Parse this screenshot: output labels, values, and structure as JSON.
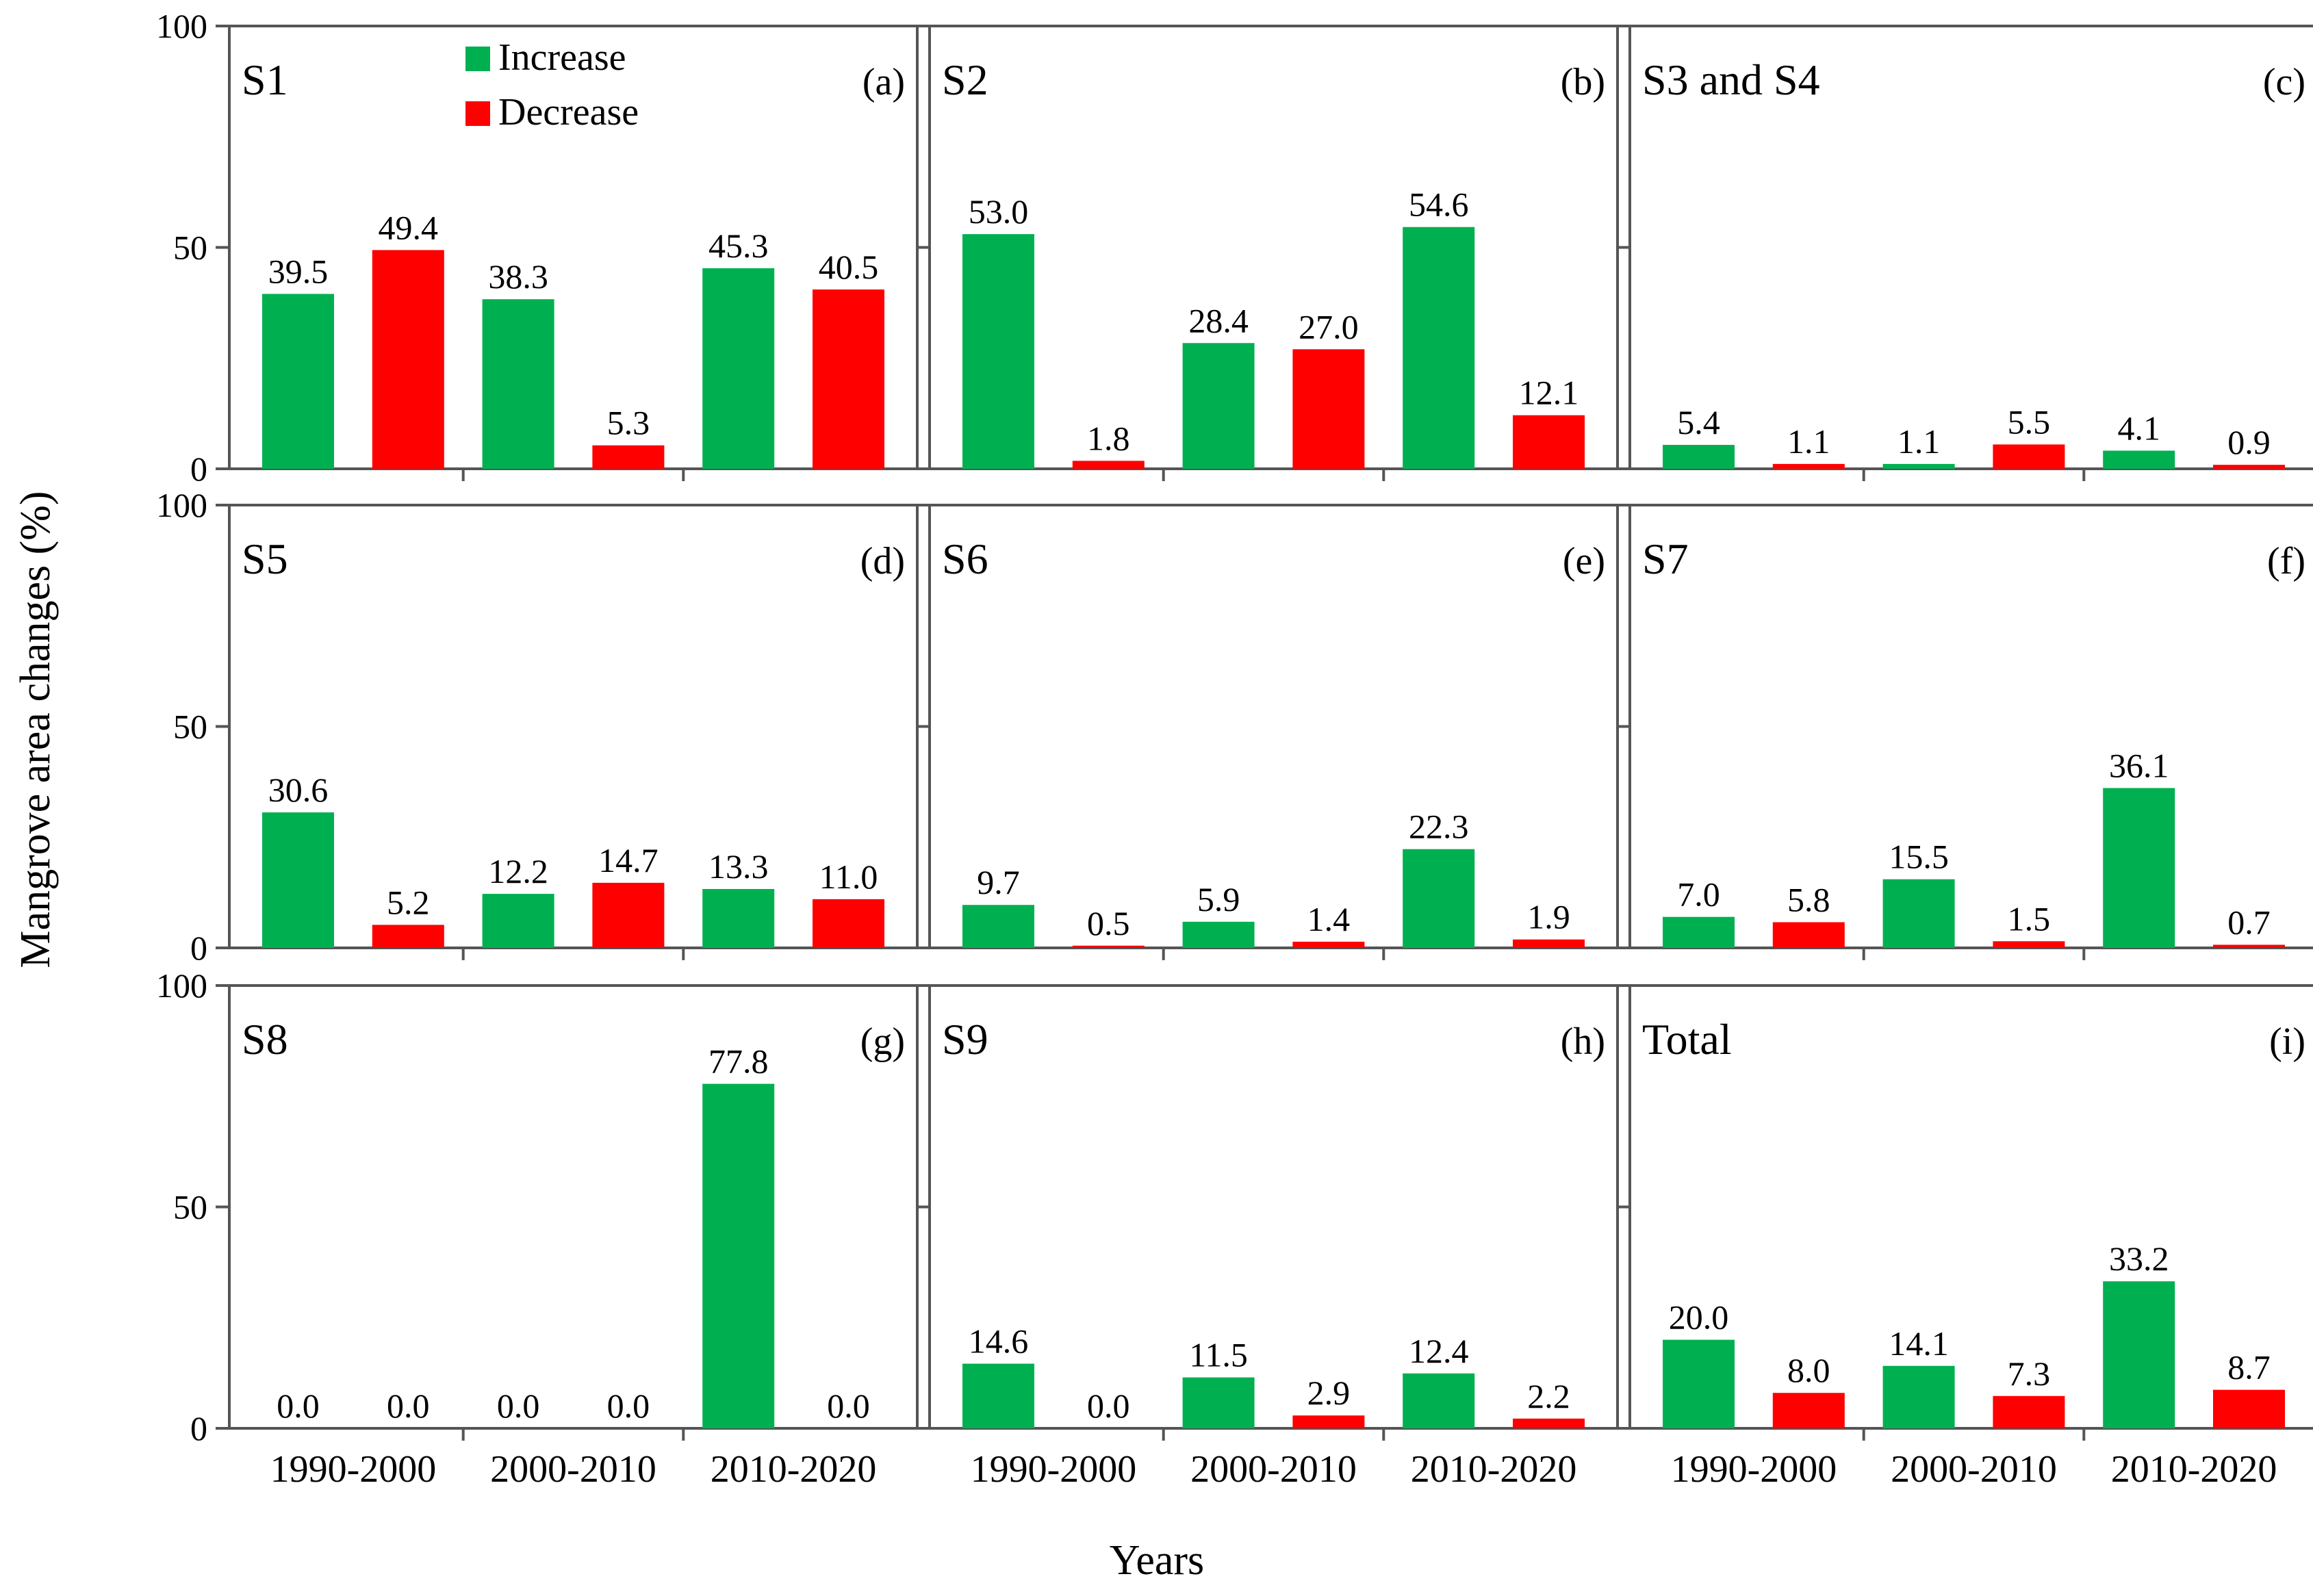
{
  "figure": {
    "ylabel": "Mangrove area changes (%)",
    "xlabel": "Years"
  },
  "legend": {
    "items": [
      {
        "label": "Increase",
        "color": "#00b050"
      },
      {
        "label": "Decrease",
        "color": "#ff0000"
      }
    ]
  },
  "chart_data": [
    {
      "type": "bar",
      "title": "S1",
      "panel_label": "(a)",
      "categories": [
        "1990-2000",
        "2000-2010",
        "2010-2020"
      ],
      "series": [
        {
          "name": "Increase",
          "values": [
            39.5,
            38.3,
            45.3
          ]
        },
        {
          "name": "Decrease",
          "values": [
            49.4,
            5.3,
            40.5
          ]
        }
      ],
      "ylim": [
        0,
        100
      ],
      "yticks": [
        0,
        50,
        100
      ],
      "value_labels": {
        "Increase": [
          "39.5",
          "38.3",
          "45.3"
        ],
        "Decrease": [
          "49.4",
          "5.3",
          "40.5"
        ]
      }
    },
    {
      "type": "bar",
      "title": "S2",
      "panel_label": "(b)",
      "categories": [
        "1990-2000",
        "2000-2010",
        "2010-2020"
      ],
      "series": [
        {
          "name": "Increase",
          "values": [
            53.0,
            28.4,
            54.6
          ]
        },
        {
          "name": "Decrease",
          "values": [
            1.8,
            27.0,
            12.1
          ]
        }
      ],
      "ylim": [
        0,
        100
      ],
      "yticks": [
        0,
        50,
        100
      ],
      "value_labels": {
        "Increase": [
          "53.0",
          "28.4",
          "54.6"
        ],
        "Decrease": [
          "1.8",
          "27.0",
          "12.1"
        ]
      }
    },
    {
      "type": "bar",
      "title": "S3 and S4",
      "panel_label": "(c)",
      "categories": [
        "1990-2000",
        "2000-2010",
        "2010-2020"
      ],
      "series": [
        {
          "name": "Increase",
          "values": [
            5.4,
            1.1,
            4.1
          ]
        },
        {
          "name": "Decrease",
          "values": [
            1.1,
            5.5,
            0.9
          ]
        }
      ],
      "ylim": [
        0,
        100
      ],
      "yticks": [
        0,
        50,
        100
      ],
      "value_labels": {
        "Increase": [
          "5.4",
          "1.1",
          "4.1"
        ],
        "Decrease": [
          "1.1",
          "5.5",
          "0.9"
        ]
      }
    },
    {
      "type": "bar",
      "title": "S5",
      "panel_label": "(d)",
      "categories": [
        "1990-2000",
        "2000-2010",
        "2010-2020"
      ],
      "series": [
        {
          "name": "Increase",
          "values": [
            30.6,
            12.2,
            13.3
          ]
        },
        {
          "name": "Decrease",
          "values": [
            5.2,
            14.7,
            11.0
          ]
        }
      ],
      "ylim": [
        0,
        100
      ],
      "yticks": [
        0,
        50,
        100
      ],
      "value_labels": {
        "Increase": [
          "30.6",
          "12.2",
          "13.3"
        ],
        "Decrease": [
          "5.2",
          "14.7",
          "11.0"
        ]
      }
    },
    {
      "type": "bar",
      "title": "S6",
      "panel_label": "(e)",
      "categories": [
        "1990-2000",
        "2000-2010",
        "2010-2020"
      ],
      "series": [
        {
          "name": "Increase",
          "values": [
            9.7,
            5.9,
            22.3
          ]
        },
        {
          "name": "Decrease",
          "values": [
            0.5,
            1.4,
            1.9
          ]
        }
      ],
      "ylim": [
        0,
        100
      ],
      "yticks": [
        0,
        50,
        100
      ],
      "value_labels": {
        "Increase": [
          "9.7",
          "5.9",
          "22.3"
        ],
        "Decrease": [
          "0.5",
          "1.4",
          "1.9"
        ]
      }
    },
    {
      "type": "bar",
      "title": "S7",
      "panel_label": "(f)",
      "categories": [
        "1990-2000",
        "2000-2010",
        "2010-2020"
      ],
      "series": [
        {
          "name": "Increase",
          "values": [
            7.0,
            15.5,
            36.1
          ]
        },
        {
          "name": "Decrease",
          "values": [
            5.8,
            1.5,
            0.7
          ]
        }
      ],
      "ylim": [
        0,
        100
      ],
      "yticks": [
        0,
        50,
        100
      ],
      "value_labels": {
        "Increase": [
          "7.0",
          "15.5",
          "36.1"
        ],
        "Decrease": [
          "5.8",
          "1.5",
          "0.7"
        ]
      }
    },
    {
      "type": "bar",
      "title": "S8",
      "panel_label": "(g)",
      "categories": [
        "1990-2000",
        "2000-2010",
        "2010-2020"
      ],
      "series": [
        {
          "name": "Increase",
          "values": [
            0.0,
            0.0,
            77.8
          ]
        },
        {
          "name": "Decrease",
          "values": [
            0.0,
            0.0,
            0.0
          ]
        }
      ],
      "ylim": [
        0,
        100
      ],
      "yticks": [
        0,
        50,
        100
      ],
      "value_labels": {
        "Increase": [
          "0.0",
          "0.0",
          "77.8"
        ],
        "Decrease": [
          "0.0",
          "0.0",
          "0.0"
        ]
      }
    },
    {
      "type": "bar",
      "title": "S9",
      "panel_label": "(h)",
      "categories": [
        "1990-2000",
        "2000-2010",
        "2010-2020"
      ],
      "series": [
        {
          "name": "Increase",
          "values": [
            14.6,
            11.5,
            12.4
          ]
        },
        {
          "name": "Decrease",
          "values": [
            0.0,
            2.9,
            2.2
          ]
        }
      ],
      "ylim": [
        0,
        100
      ],
      "yticks": [
        0,
        50,
        100
      ],
      "value_labels": {
        "Increase": [
          "14.6",
          "11.5",
          "12.4"
        ],
        "Decrease": [
          "0.0",
          "2.9",
          "2.2"
        ]
      }
    },
    {
      "type": "bar",
      "title": "Total",
      "panel_label": "(i)",
      "categories": [
        "1990-2000",
        "2000-2010",
        "2010-2020"
      ],
      "series": [
        {
          "name": "Increase",
          "values": [
            20.0,
            14.1,
            33.2
          ]
        },
        {
          "name": "Decrease",
          "values": [
            8.0,
            7.3,
            8.7
          ]
        }
      ],
      "ylim": [
        0,
        100
      ],
      "yticks": [
        0,
        50,
        100
      ],
      "value_labels": {
        "Increase": [
          "20.0",
          "14.1",
          "33.2"
        ],
        "Decrease": [
          "8.0",
          "7.3",
          "8.7"
        ]
      }
    }
  ]
}
